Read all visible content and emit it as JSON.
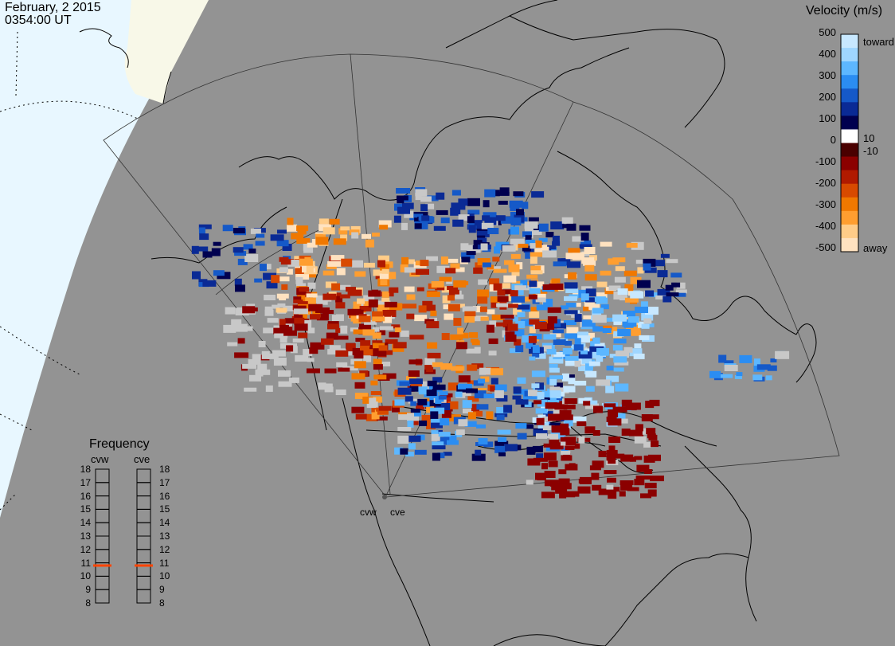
{
  "header": {
    "date": "February, 2 2015",
    "time": "0354:00 UT"
  },
  "colorbar": {
    "title": "Velocity (m/s)",
    "ticks": [
      "500",
      "400",
      "300",
      "200",
      "100",
      "0",
      "-100",
      "-200",
      "-300",
      "-400",
      "-500"
    ],
    "side_top": "toward",
    "side_mid_pos": "10",
    "side_mid_neg": "-10",
    "side_bottom": "away",
    "stops": [
      "#c8e8ff",
      "#9fd6ff",
      "#5db7ff",
      "#2b8df2",
      "#1559c8",
      "#0a2a95",
      "#00004f",
      "#ffffff",
      "#4a0000",
      "#8b0000",
      "#b01a00",
      "#d84a00",
      "#f07800",
      "#ff9e30",
      "#ffcc88",
      "#ffe2c0"
    ]
  },
  "frequency": {
    "title": "Frequency",
    "radars": [
      "cvw",
      "cve"
    ],
    "scale": [
      "18",
      "17",
      "16",
      "15",
      "14",
      "13",
      "12",
      "11",
      "10",
      "9",
      "8"
    ],
    "cvw_mhz": 10.8,
    "cve_mhz": 10.8
  },
  "radars": {
    "west": "cvw",
    "east": "cve"
  },
  "colors": {
    "ocean": "#e8f7ff",
    "land_day": "#f8f8e8",
    "night": "#939393",
    "low_velocity": "#c8c8c8",
    "frequency_marker": "#ff4400"
  }
}
